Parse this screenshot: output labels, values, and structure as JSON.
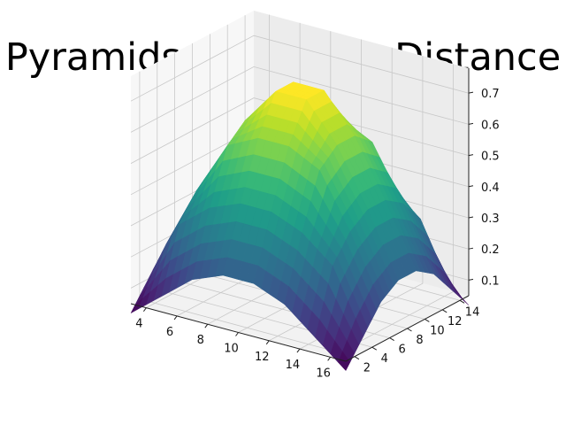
{
  "chart_data": {
    "type": "surface3d",
    "title": "Pyramids JA Frechet Distance",
    "xlabel": "",
    "ylabel": "",
    "zlabel": "",
    "x_ticks": [
      "4",
      "6",
      "8",
      "10",
      "12",
      "14",
      "16"
    ],
    "y_ticks": [
      "2",
      "4",
      "6",
      "8",
      "10",
      "12",
      "14"
    ],
    "z_ticks": [
      "0.1",
      "0.2",
      "0.3",
      "0.4",
      "0.5",
      "0.6",
      "0.7"
    ],
    "xlim": [
      3,
      17
    ],
    "ylim": [
      1,
      15
    ],
    "zlim": [
      0.05,
      0.78
    ],
    "x": [
      3,
      5,
      7,
      9,
      11,
      13,
      15,
      17
    ],
    "y": [
      1,
      3,
      5,
      7,
      9,
      11,
      13,
      15
    ],
    "z": [
      [
        0.02,
        0.1,
        0.18,
        0.22,
        0.22,
        0.18,
        0.1,
        0.02
      ],
      [
        0.1,
        0.3,
        0.38,
        0.42,
        0.42,
        0.38,
        0.3,
        0.1
      ],
      [
        0.18,
        0.38,
        0.55,
        0.6,
        0.6,
        0.55,
        0.38,
        0.18
      ],
      [
        0.22,
        0.42,
        0.6,
        0.72,
        0.72,
        0.6,
        0.42,
        0.22
      ],
      [
        0.22,
        0.42,
        0.6,
        0.72,
        0.72,
        0.6,
        0.42,
        0.22
      ],
      [
        0.18,
        0.38,
        0.55,
        0.6,
        0.6,
        0.55,
        0.38,
        0.18
      ],
      [
        0.1,
        0.3,
        0.38,
        0.42,
        0.42,
        0.38,
        0.3,
        0.1
      ],
      [
        0.02,
        0.1,
        0.18,
        0.22,
        0.22,
        0.18,
        0.1,
        0.02
      ]
    ],
    "colormap": "viridis",
    "grid": true
  }
}
